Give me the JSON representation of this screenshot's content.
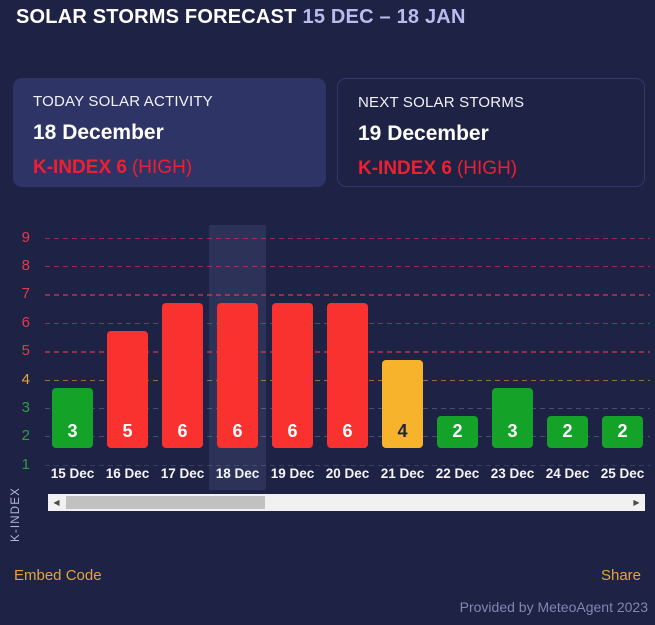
{
  "header": {
    "title": "SOLAR STORMS FORECAST",
    "date_range": "15 DEC – 18 JAN"
  },
  "cards": {
    "today": {
      "label": "TODAY SOLAR ACTIVITY",
      "date": "18 December",
      "kindex_label": "K-INDEX 6",
      "severity": "(HIGH)"
    },
    "next": {
      "label": "NEXT SOLAR STORMS",
      "date": "19 December",
      "kindex_label": "K-INDEX 6",
      "severity": "(HIGH)"
    }
  },
  "chart_data": {
    "type": "bar",
    "title": "",
    "categories": [
      "15 Dec",
      "16 Dec",
      "17 Dec",
      "18 Dec",
      "19 Dec",
      "20 Dec",
      "21 Dec",
      "22 Dec",
      "23 Dec",
      "24 Dec",
      "25 Dec"
    ],
    "values": [
      3,
      5,
      6,
      6,
      6,
      6,
      4,
      2,
      3,
      2,
      2
    ],
    "highlighted_category": "18 Dec",
    "xlabel": "",
    "ylabel": "K-INDEX",
    "ylim": [
      1,
      9
    ],
    "yticks": [
      1,
      2,
      3,
      4,
      5,
      6,
      7,
      8,
      9
    ],
    "grid": "dashed-horizontal",
    "legend": "none",
    "thresholds": {
      "low_max": 3,
      "moderate_max": 4
    },
    "bar_colors": {
      "low": "#15a228",
      "moderate": "#f7b32c",
      "high": "#f93230"
    },
    "value_label_colors": {
      "on_low": "#ffffff",
      "on_moderate": "#1e2542",
      "on_high": "#ffffff"
    },
    "axis_tick_colors": {
      "low": "#2f9e43",
      "moderate": "#e8a33c",
      "high": "#e03c4e"
    },
    "gridline_colors": {
      "low": "rgba(190,196,222,0.28)",
      "moderate": "rgba(232,163,60,0.6)",
      "high": "rgba(224,60,78,0.6)"
    }
  },
  "icons": {
    "scroll_left": "◀",
    "scroll_right": "▶"
  },
  "footer": {
    "embed_label": "Embed Code",
    "share_label": "Share",
    "provided": "Provided by MeteoAgent 2023"
  },
  "colors": {
    "background": "#1e2244",
    "card": "#2e3566",
    "card_border": "#303a6b",
    "accent_red": "#ef1e31",
    "header_range": "#b9bdee",
    "link": "#e3a33d",
    "provided_text": "#8187b0",
    "highlight_band": "rgba(148,162,224,0.13)"
  }
}
